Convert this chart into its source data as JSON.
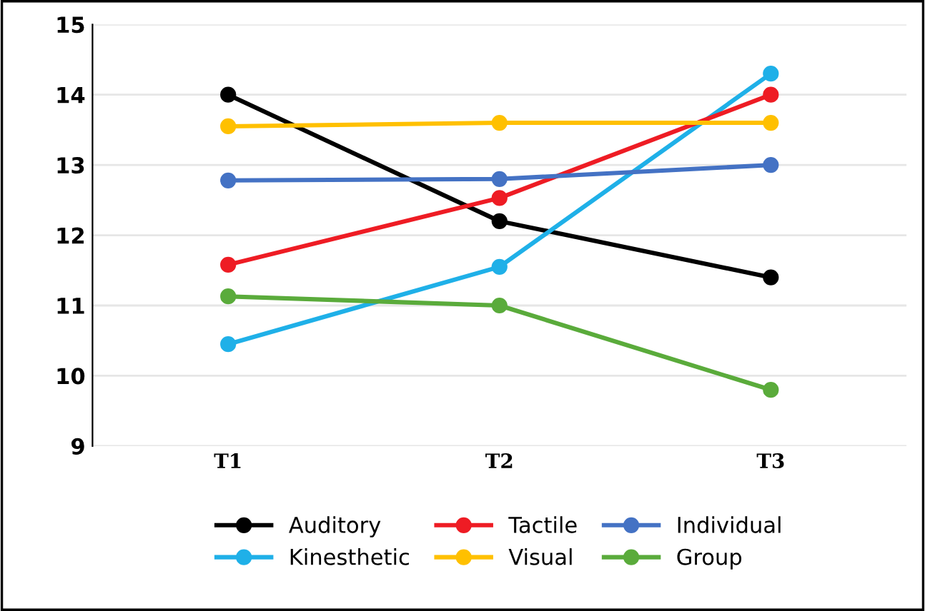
{
  "chart_data": {
    "type": "line",
    "categories": [
      "T1",
      "T2",
      "T3"
    ],
    "series": [
      {
        "name": "Auditory",
        "color": "#000000",
        "values": [
          14.0,
          12.2,
          11.4
        ]
      },
      {
        "name": "Kinesthetic",
        "color": "#1fb0e8",
        "values": [
          10.45,
          11.55,
          14.3
        ]
      },
      {
        "name": "Tactile",
        "color": "#ee1c24",
        "values": [
          11.58,
          12.53,
          14.0
        ]
      },
      {
        "name": "Visual",
        "color": "#ffc000",
        "values": [
          13.55,
          13.6,
          13.6
        ]
      },
      {
        "name": "Individual",
        "color": "#4472c4",
        "values": [
          12.78,
          12.8,
          13.0
        ]
      },
      {
        "name": "Group",
        "color": "#5aab3b",
        "values": [
          11.13,
          11.0,
          9.8
        ]
      }
    ],
    "ylim": [
      9,
      15
    ],
    "yticks": [
      9,
      10,
      11,
      12,
      13,
      14,
      15
    ],
    "grid": "y",
    "legend": "bottom",
    "marker": "circle",
    "line_style": "solid"
  }
}
